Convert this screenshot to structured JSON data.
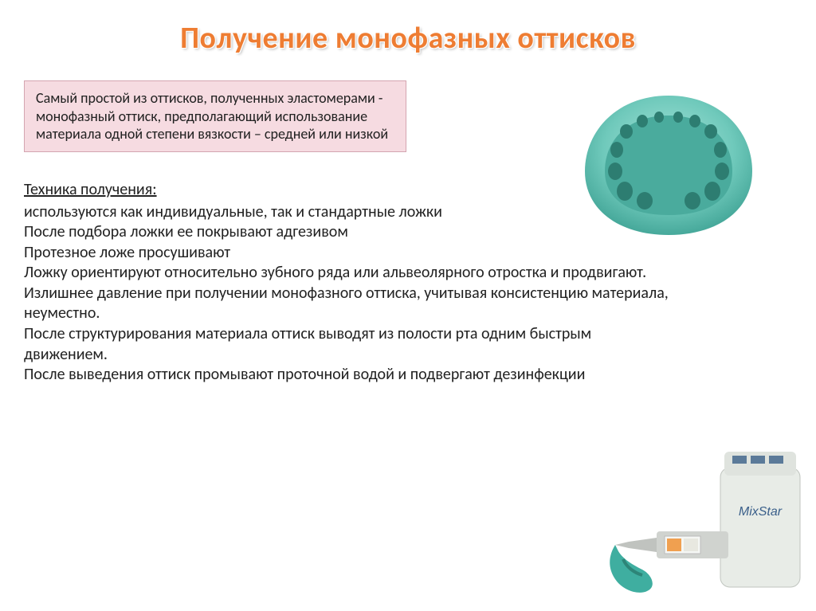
{
  "title": "Получение монофазных оттисков",
  "intro": "Самый простой из оттисков, полученных эластомерами - монофазный оттиск, предполагающий использование материала одной степени вязкости – средней или низкой",
  "section_header": "Техника получения:",
  "body": "используются как индивидуальные, так и стандартные ложки\nПосле подбора ложки ее покрывают адгезивом\nПротезное ложе просушивают\nЛожку ориентируют относительно зубного ряда или альвеолярного отростка и продвигают. Излишнее давление при получении монофазного оттиска, учитывая консистенцию материала, неуместно.\nПосле структурирования материала оттиск выводят из полости рта одним быстрым движением.\nПосле выведения оттиск промывают проточной водой и подвергают дезинфекции",
  "colors": {
    "title": "#ee7d33",
    "intro_bg": "#f6dbe1",
    "intro_border": "#d4a5b0",
    "text": "#222222",
    "impression_material": "#6fc9bb",
    "mixer_body": "#e8ece7",
    "mixer_accent": "#f0a050"
  },
  "images": {
    "impression": "dental-impression",
    "mixer": "mixstar-mixer"
  },
  "mixer_label": "MixStar"
}
